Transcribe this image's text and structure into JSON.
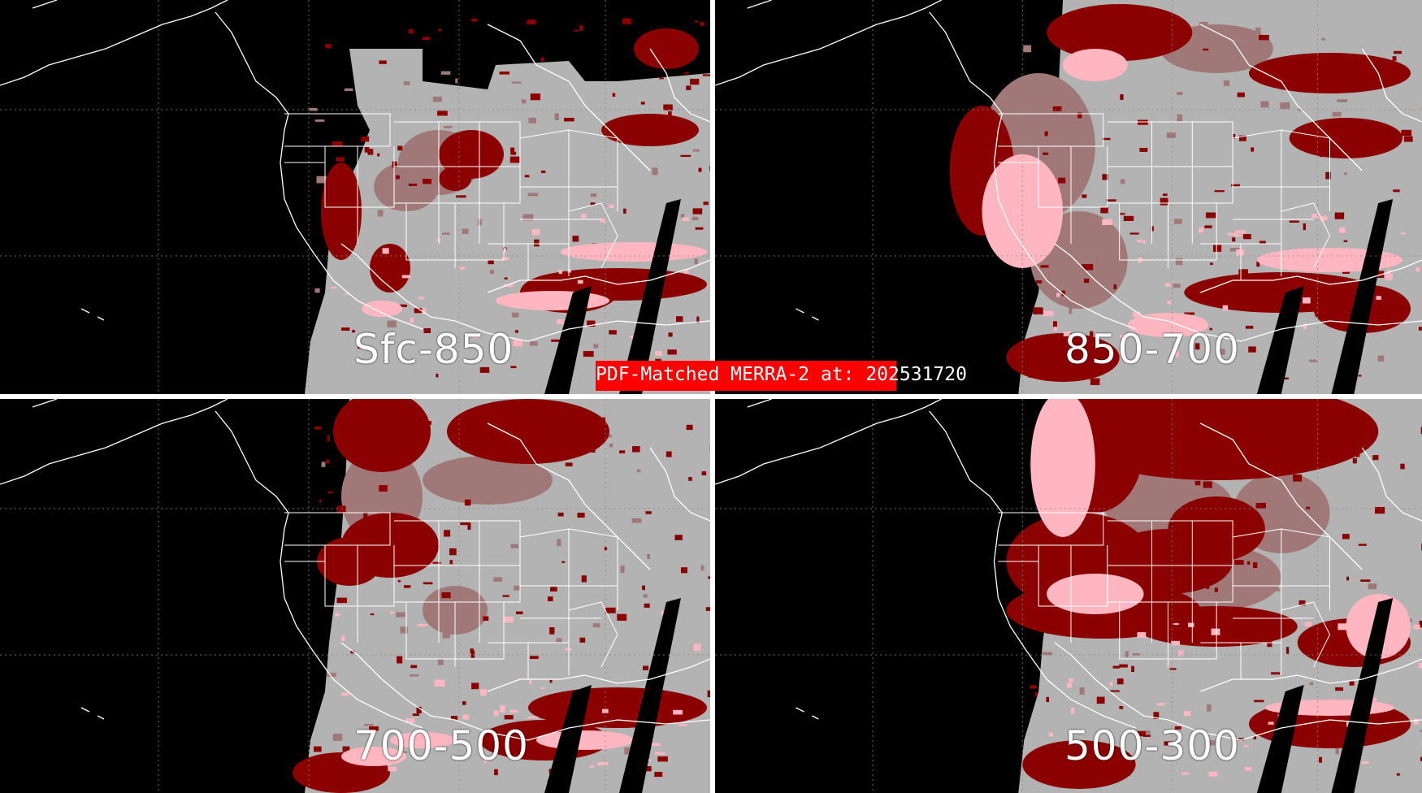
{
  "title": "PDF-Matched MERRA-2 at: 202531720",
  "panels": [
    {
      "label": "Sfc-850"
    },
    {
      "label": "850-700"
    },
    {
      "label": "700-500"
    },
    {
      "label": "500-300"
    }
  ],
  "colors": {
    "background": "#000000",
    "clear": "#b3b3b3",
    "light_category": "#ffb6c1",
    "medium_category": "#8b0000",
    "low_category": "#a07878",
    "accent": "#ff0000",
    "map_lines": "#ffffff",
    "grid": "#888888"
  },
  "map_features": [
    "coastlines",
    "us-state-boundaries",
    "lat-lon-grid",
    "swath-gaps"
  ]
}
